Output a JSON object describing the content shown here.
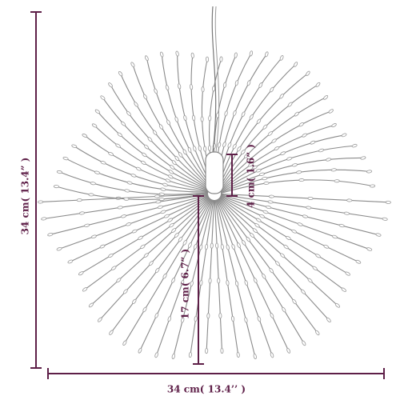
{
  "dimensions": {
    "overall_height": "34 cm( 13.4” )",
    "overall_width": "34 cm( 13.4’’ )",
    "hub_height": "4 cm( 1.6” )",
    "wire_length": "17 cm( 6.7” )"
  }
}
